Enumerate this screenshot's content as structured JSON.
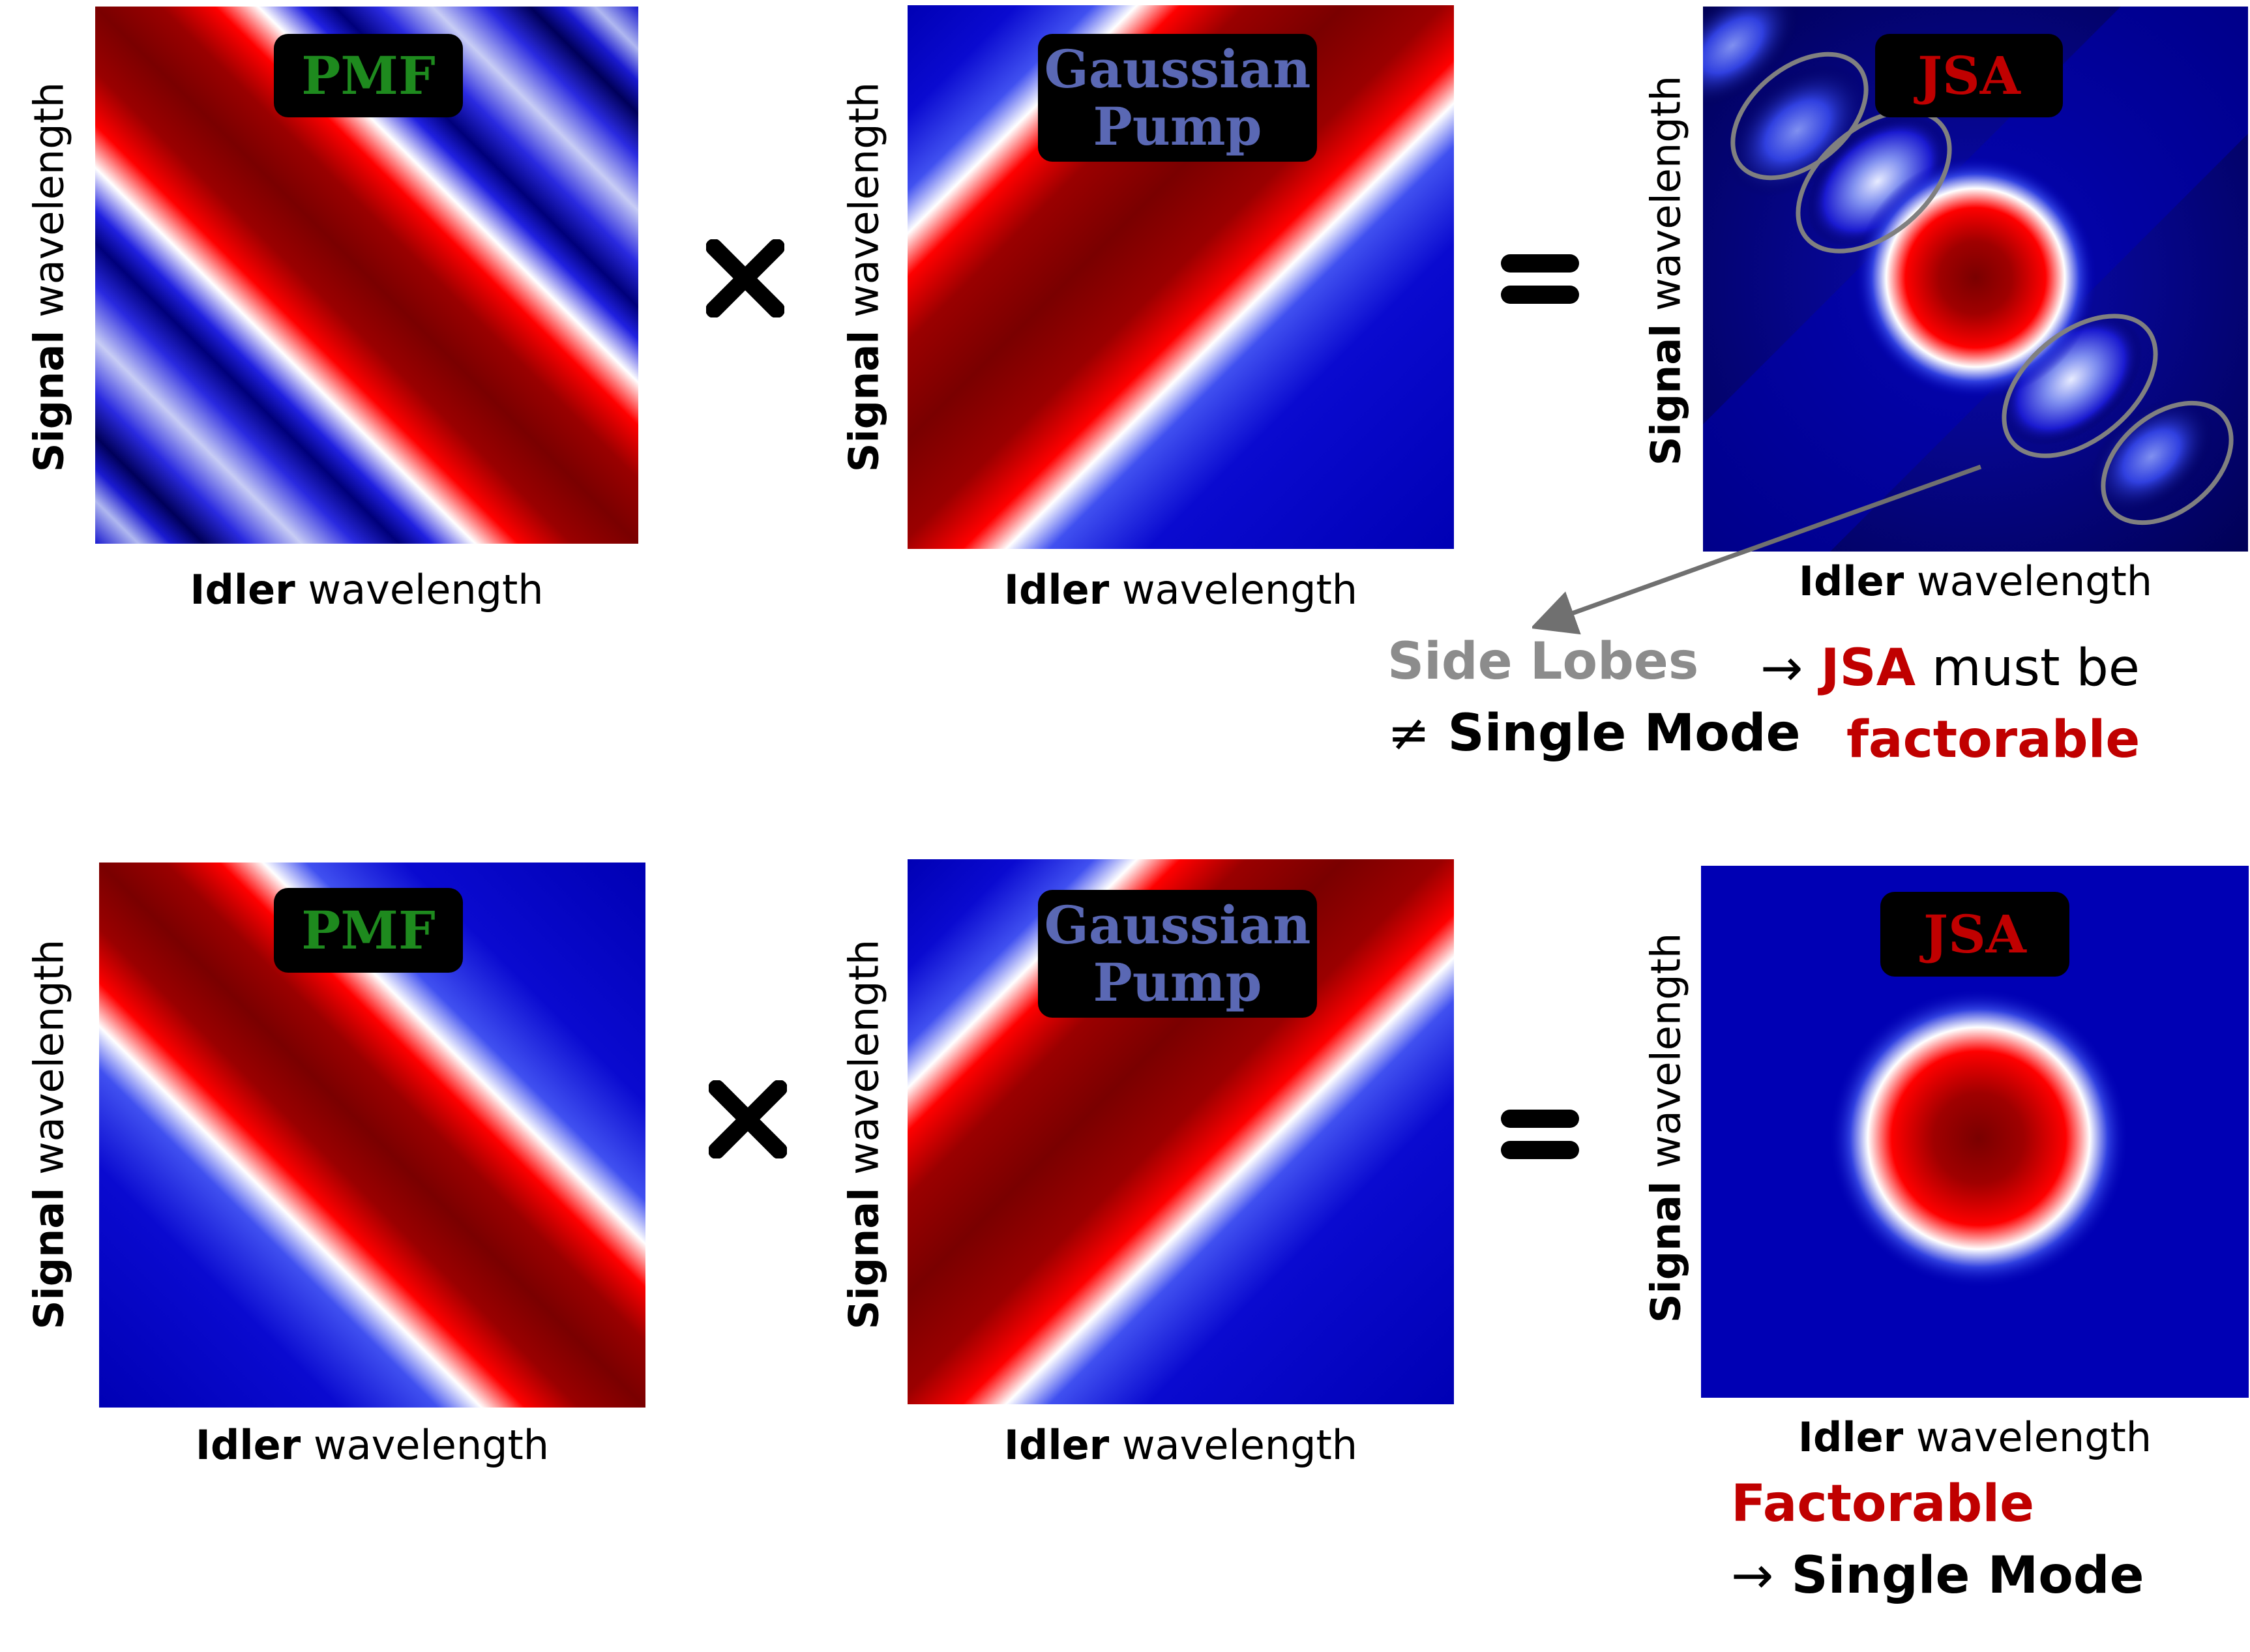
{
  "axes": {
    "x_bold": "Idler",
    "x_rest": " wavelength",
    "y_bold": "Signal",
    "y_rest": " wavelength"
  },
  "tags": {
    "pmf": "PMF",
    "pump_line1": "Gaussian",
    "pump_line2": "Pump",
    "jsa": "JSA"
  },
  "operators": {
    "times": "×",
    "equals": "="
  },
  "annotations": {
    "side_lobes": "Side Lobes",
    "not_equal_symbol": "≠",
    "single_mode": "Single Mode",
    "arrow": "→",
    "jsa": "JSA",
    "must_be": " must be",
    "factorable_lower": "factorable",
    "factorable_cap": "Factorable",
    "single_mode_bottom": "Single Mode"
  },
  "colors": {
    "low": "#0000b4",
    "mid": "#ffffff",
    "high": "#7a0000",
    "jsa_background": "#000050",
    "lobe_outline": "#808080",
    "tag_background": "#000000",
    "pmf_text": "#1e8a1e",
    "pump_text": "#5a68b4",
    "jsa_text": "#c00000"
  }
}
